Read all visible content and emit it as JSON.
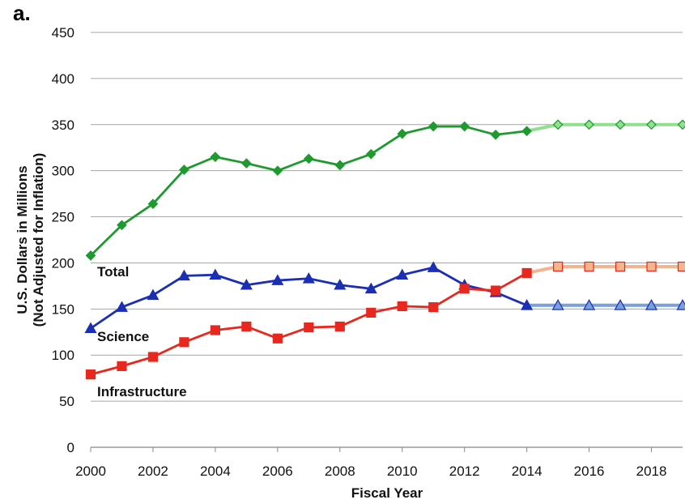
{
  "panel_label": "a.",
  "chart_data": {
    "type": "line",
    "xlabel": "Fiscal Year",
    "ylabel": "U.S. Dollars in Millions",
    "ylabel_line2": "(Not Adjusted for Inflation)",
    "xlim": [
      2000,
      2019
    ],
    "ylim": [
      0,
      450
    ],
    "grid": true,
    "x_ticks": [
      "2000",
      "2002",
      "2004",
      "2006",
      "2008",
      "2010",
      "2012",
      "2014",
      "2016",
      "2018"
    ],
    "y_ticks": [
      "0",
      "50",
      "100",
      "150",
      "200",
      "250",
      "300",
      "350",
      "400",
      "450"
    ],
    "series": [
      {
        "name": "Total",
        "marker": "diamond",
        "color": "#1e9a2e",
        "projected_color": "#8fe08f",
        "actual": {
          "x": [
            2000,
            2001,
            2002,
            2003,
            2004,
            2005,
            2006,
            2007,
            2008,
            2009,
            2010,
            2011,
            2012,
            2013,
            2014
          ],
          "y": [
            208,
            241,
            264,
            301,
            315,
            308,
            300,
            313,
            306,
            318,
            340,
            348,
            348,
            339,
            343
          ]
        },
        "projected": {
          "x": [
            2014,
            2015,
            2016,
            2017,
            2018,
            2019
          ],
          "y": [
            343,
            350,
            350,
            350,
            350,
            350
          ]
        }
      },
      {
        "name": "Science",
        "marker": "triangle",
        "color": "#1a2fb5",
        "projected_color": "#7aa0dc",
        "actual": {
          "x": [
            2000,
            2001,
            2002,
            2003,
            2004,
            2005,
            2006,
            2007,
            2008,
            2009,
            2010,
            2011,
            2012,
            2013,
            2014
          ],
          "y": [
            129,
            152,
            165,
            186,
            187,
            176,
            181,
            183,
            176,
            172,
            187,
            195,
            176,
            168,
            154
          ]
        },
        "projected": {
          "x": [
            2014,
            2015,
            2016,
            2017,
            2018,
            2019
          ],
          "y": [
            154,
            154,
            154,
            154,
            154,
            154
          ]
        }
      },
      {
        "name": "Infrastructure",
        "marker": "square",
        "color": "#e8281e",
        "projected_color": "#f4b48e",
        "actual": {
          "x": [
            2000,
            2001,
            2002,
            2003,
            2004,
            2005,
            2006,
            2007,
            2008,
            2009,
            2010,
            2011,
            2012,
            2013,
            2014
          ],
          "y": [
            79,
            88,
            98,
            114,
            127,
            131,
            118,
            130,
            131,
            146,
            153,
            152,
            172,
            170,
            189
          ]
        },
        "projected": {
          "x": [
            2014,
            2015,
            2016,
            2017,
            2018,
            2019
          ],
          "y": [
            189,
            196,
            196,
            196,
            196,
            196
          ]
        }
      }
    ]
  }
}
